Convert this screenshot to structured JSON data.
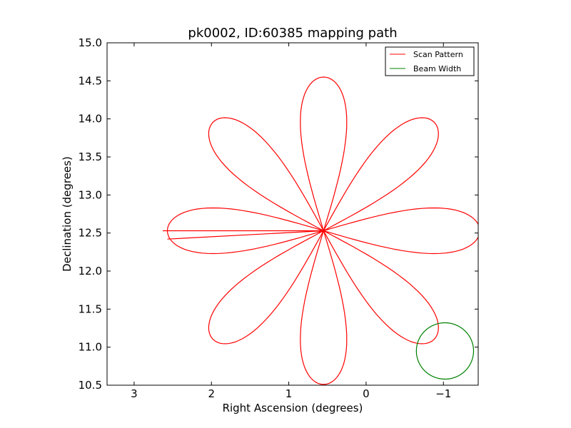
{
  "chart_data": {
    "type": "line",
    "title": "pk0002, ID:60385 mapping path",
    "xlabel": "Right Ascension (degrees)",
    "ylabel": "Declination (degrees)",
    "xlim": [
      3.35,
      -1.45
    ],
    "ylim": [
      10.5,
      15.0
    ],
    "x_inverted": true,
    "xticks": [
      {
        "value": 3,
        "label": "3"
      },
      {
        "value": 2,
        "label": "2"
      },
      {
        "value": 1,
        "label": "1"
      },
      {
        "value": 0,
        "label": "0"
      },
      {
        "value": -1,
        "label": "−1"
      }
    ],
    "yticks": [
      {
        "value": 10.5,
        "label": "10.5"
      },
      {
        "value": 11.0,
        "label": "11.0"
      },
      {
        "value": 11.5,
        "label": "11.5"
      },
      {
        "value": 12.0,
        "label": "12.0"
      },
      {
        "value": 12.5,
        "label": "12.5"
      },
      {
        "value": 13.0,
        "label": "13.0"
      },
      {
        "value": 13.5,
        "label": "13.5"
      },
      {
        "value": 14.0,
        "label": "14.0"
      },
      {
        "value": 14.5,
        "label": "14.5"
      },
      {
        "value": 15.0,
        "label": "15.0"
      }
    ],
    "grid": false,
    "legend": {
      "position": "top-right",
      "entries": [
        {
          "label": "Scan Pattern",
          "color": "#ff0000"
        },
        {
          "label": "Beam Width",
          "color": "#008000"
        }
      ]
    },
    "series": [
      {
        "name": "Scan Pattern",
        "type": "rose-curve",
        "color": "#ff0000",
        "center": [
          0.55,
          12.53
        ],
        "petals": 8,
        "petal_length": 2.02,
        "petal_half_width": 0.3,
        "start_point": [
          2.57,
          12.42
        ],
        "end_point": [
          2.63,
          12.53
        ]
      },
      {
        "name": "Beam Width",
        "type": "circle",
        "color": "#008000",
        "center": [
          -1.02,
          10.95
        ],
        "radius": 0.37
      }
    ]
  }
}
